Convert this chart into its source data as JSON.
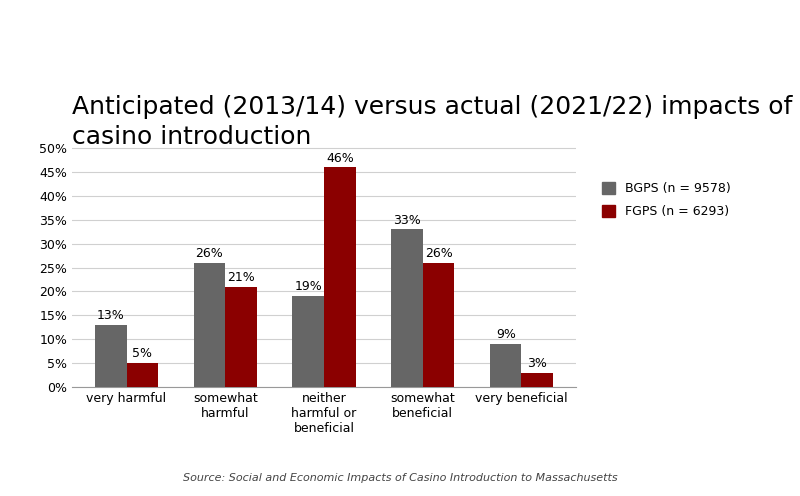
{
  "title_line1": "Anticipated (2013/14) versus actual (2021/22) impacts of",
  "title_line2": "casino introduction",
  "categories": [
    "very harmful",
    "somewhat\nharmful",
    "neither\nharmful or\nbeneficial",
    "somewhat\nbeneficial",
    "very beneficial"
  ],
  "bgps_values": [
    13,
    26,
    19,
    33,
    9
  ],
  "fgps_values": [
    5,
    21,
    46,
    26,
    3
  ],
  "bgps_color": "#666666",
  "fgps_color": "#8B0000",
  "bgps_label": "BGPS (n = 9578)",
  "fgps_label": "FGPS (n = 6293)",
  "ylim": [
    0,
    52
  ],
  "yticks": [
    0,
    5,
    10,
    15,
    20,
    25,
    30,
    35,
    40,
    45,
    50
  ],
  "ytick_labels": [
    "0%",
    "5%",
    "10%",
    "15%",
    "20%",
    "25%",
    "30%",
    "35%",
    "40%",
    "45%",
    "50%"
  ],
  "source_text": "Source: Social and Economic Impacts of Casino Introduction to Massachusetts",
  "background_color": "#ffffff",
  "title_fontsize": 18,
  "label_fontsize": 9,
  "bar_width": 0.32,
  "grid_color": "#d0d0d0"
}
